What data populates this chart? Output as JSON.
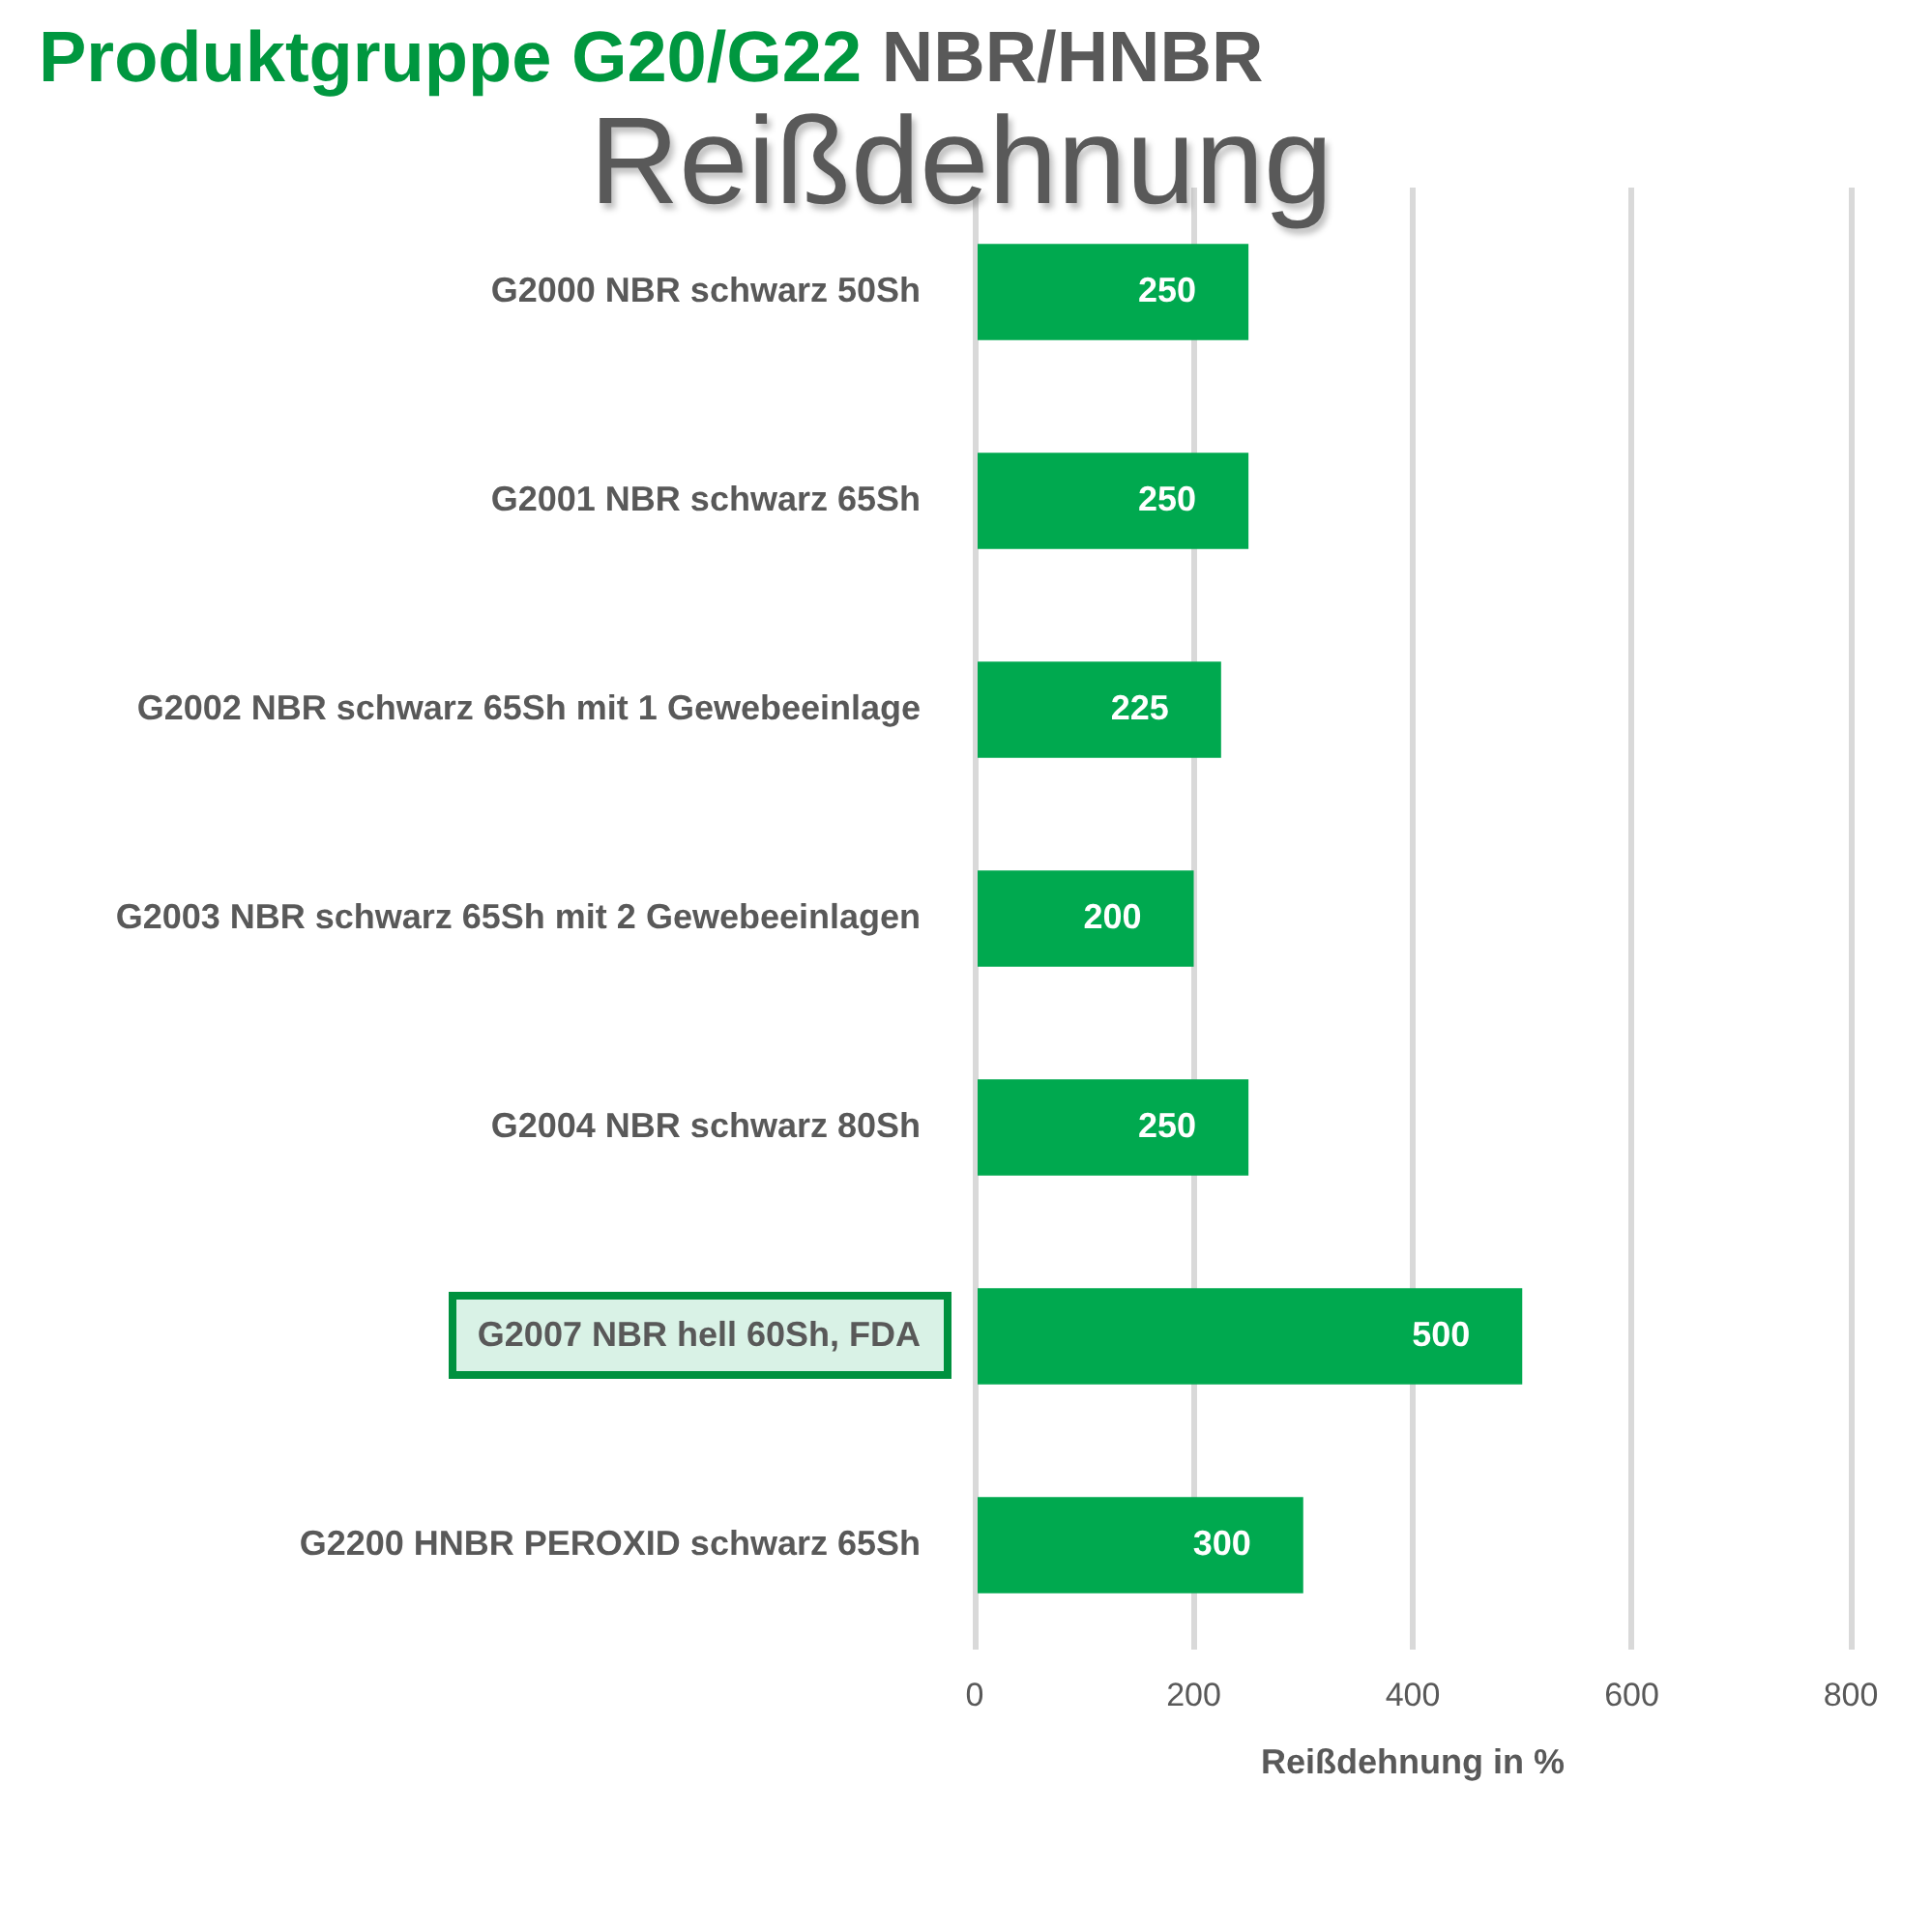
{
  "chart_data": {
    "type": "bar",
    "orientation": "horizontal",
    "title": "Produktgruppe G20/G22 NBR/HNBR",
    "subtitle": "Reißdehnung",
    "xlabel": "Reißdehnung in %",
    "categories": [
      "G2000 NBR schwarz 50Sh",
      "G2001 NBR schwarz 65Sh",
      "G2002 NBR schwarz 65Sh mit 1 Gewebeeinlage",
      "G2003 NBR schwarz 65Sh mit 2 Gewebeeinlagen",
      "G2004 NBR schwarz 80Sh",
      "G2007 NBR hell 60Sh, FDA",
      "G2200 HNBR PEROXID schwarz 65Sh"
    ],
    "values": [
      250,
      250,
      225,
      200,
      250,
      500,
      300
    ],
    "color": "#00a94f",
    "xlim": [
      0,
      800
    ],
    "xticks": [
      0,
      200,
      400,
      600,
      800
    ],
    "grid": "x",
    "data_labels": true
  }
}
